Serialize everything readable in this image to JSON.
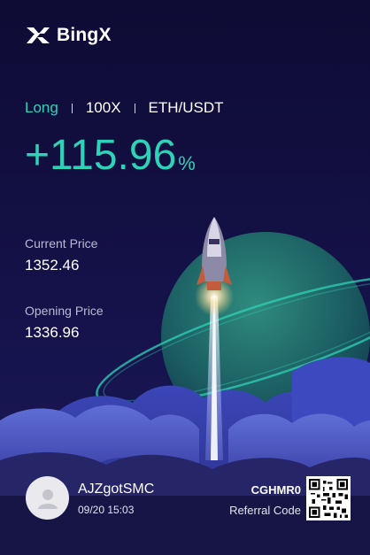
{
  "brand": {
    "name": "BingX"
  },
  "trade": {
    "side": "Long",
    "leverage": "100X",
    "pair": "ETH/USDT",
    "pnl_value": "+115.96",
    "pnl_unit": "%"
  },
  "prices": {
    "current_label": "Current Price",
    "current_value": "1352.46",
    "opening_label": "Opening Price",
    "opening_value": "1336.96"
  },
  "user": {
    "name": "AJZgotSMC",
    "timestamp": "09/20 15:03"
  },
  "referral": {
    "code": "CGHMR0",
    "label": "Referral Code"
  },
  "colors": {
    "accent": "#2ed3b7",
    "background": "#120f3c"
  }
}
